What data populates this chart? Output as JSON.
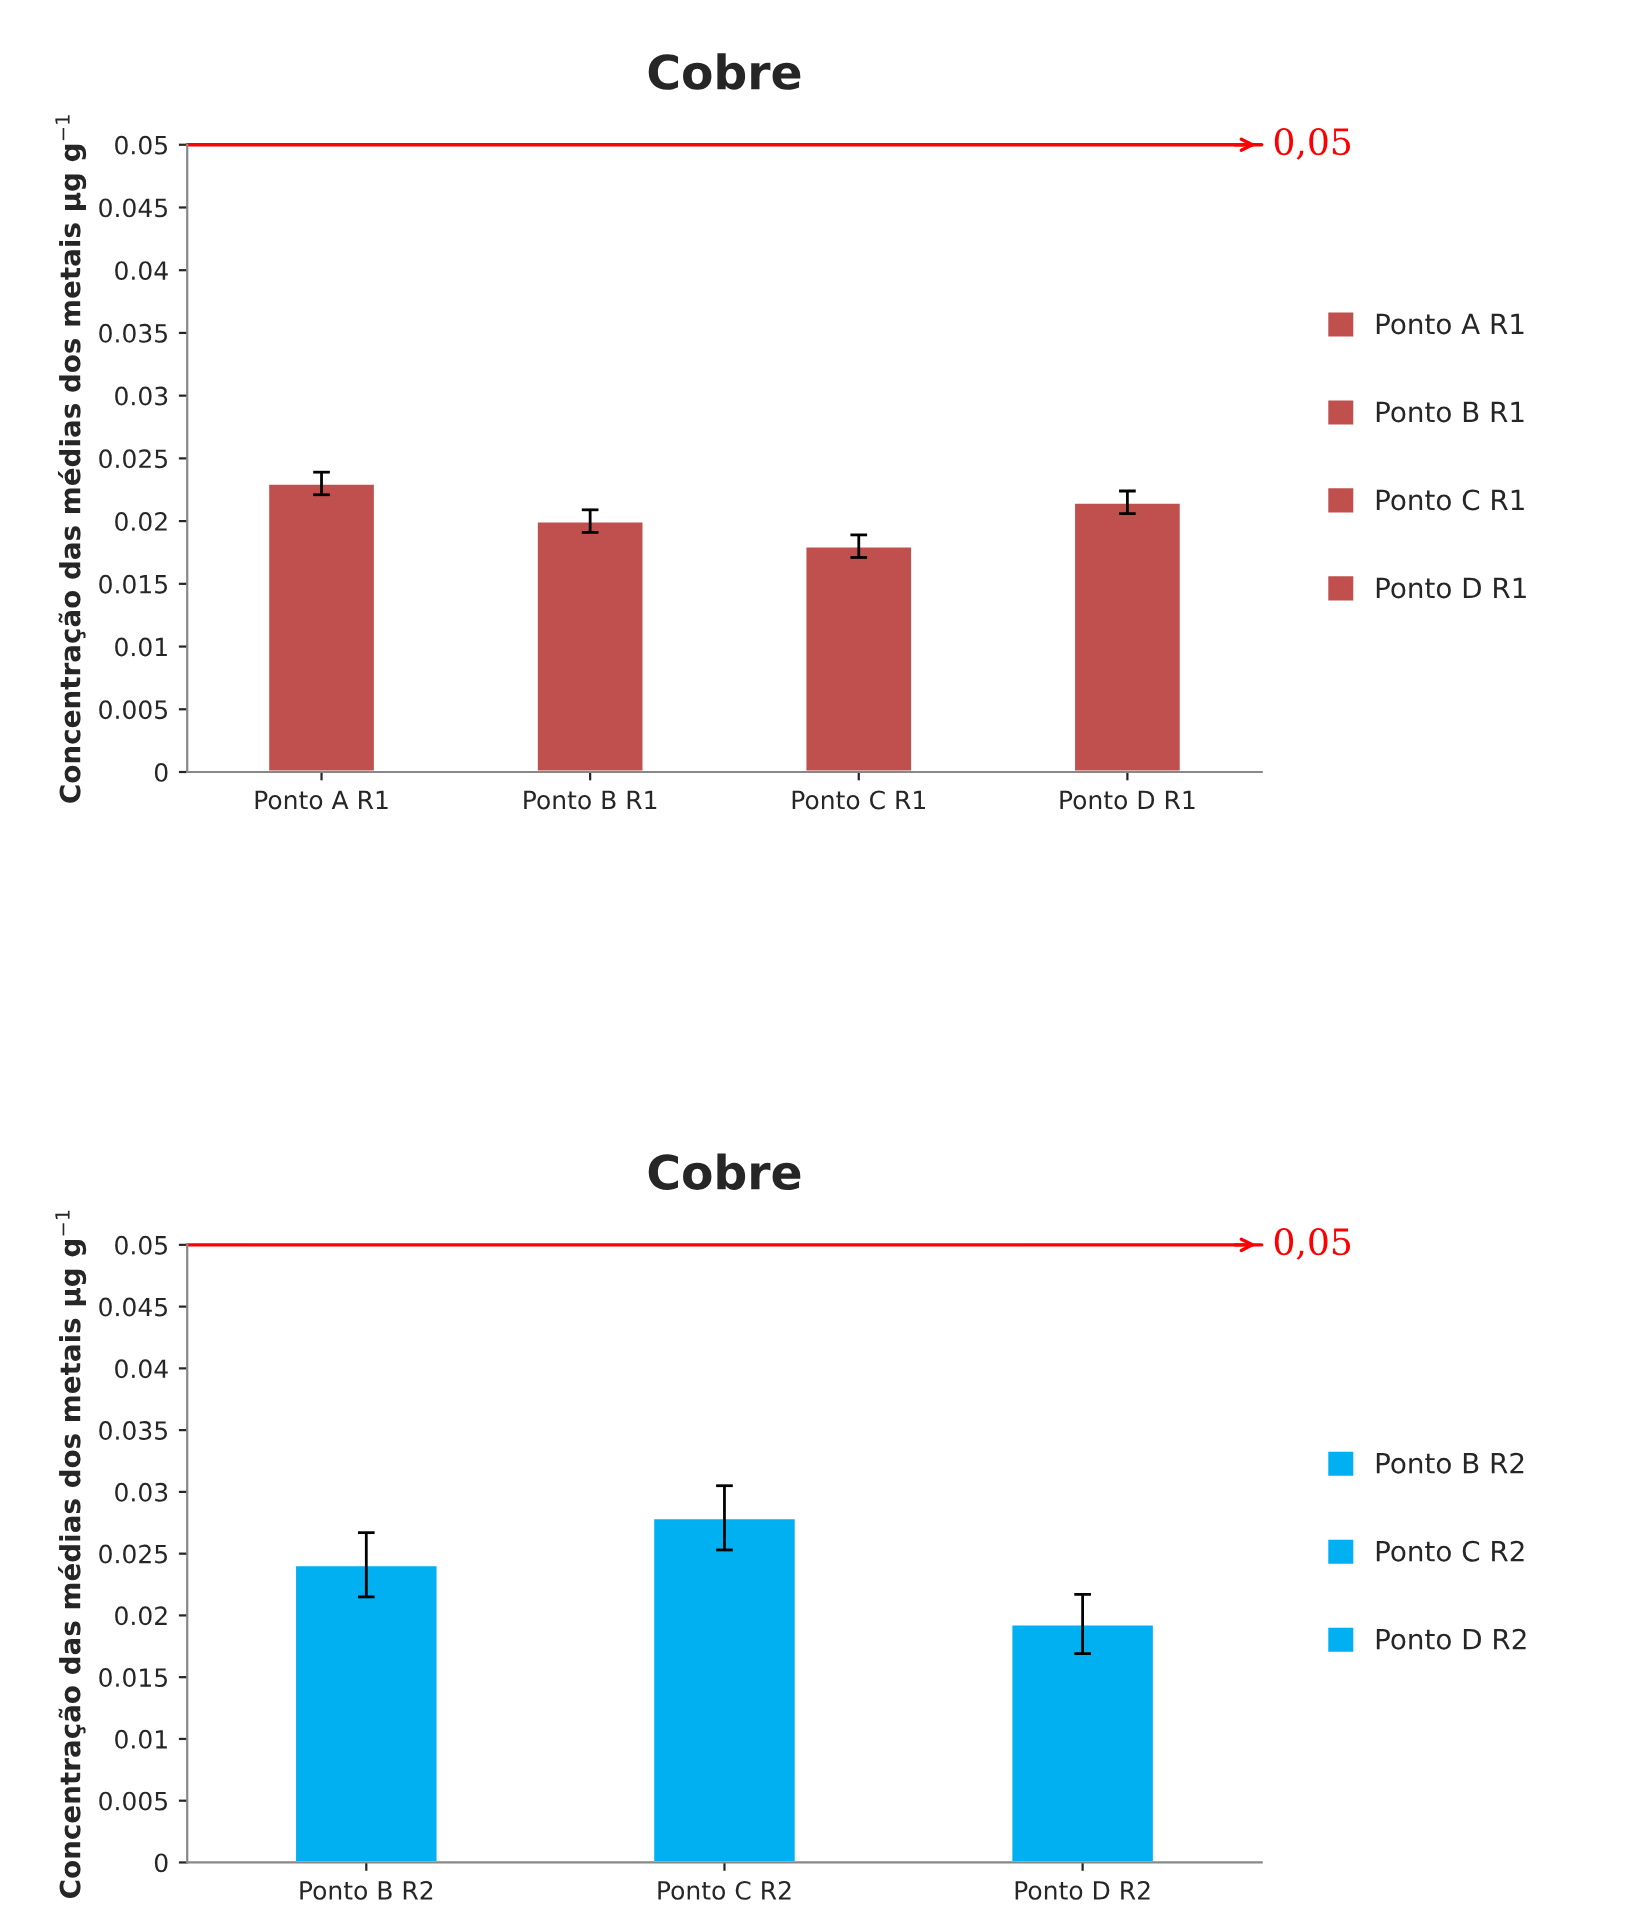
{
  "chart_data": [
    {
      "type": "bar",
      "title": "Cobre",
      "ylabel": "Concentração das médias dos metais µg g$^{−1}$",
      "categories": [
        "Ponto A R1",
        "Ponto B R1",
        "Ponto C R1",
        "Ponto D R1"
      ],
      "series": [
        {
          "name": "Ponto A R1",
          "color": "#c0504d",
          "values": [
            0.023,
            null,
            null,
            null
          ],
          "errors": [
            0.0009,
            null,
            null,
            null
          ]
        },
        {
          "name": "Ponto B R1",
          "color": "#c0504d",
          "values": [
            null,
            0.02,
            null,
            null
          ],
          "errors": [
            null,
            0.0009,
            null,
            null
          ]
        },
        {
          "name": "Ponto C R1",
          "color": "#c0504d",
          "values": [
            null,
            null,
            0.018,
            null
          ],
          "errors": [
            null,
            null,
            0.0009,
            null
          ]
        },
        {
          "name": "Ponto D R1",
          "color": "#c0504d",
          "values": [
            null,
            null,
            null,
            0.0215
          ],
          "errors": [
            null,
            null,
            null,
            0.0009
          ]
        }
      ],
      "ylim": [
        0,
        0.05
      ],
      "yticks": [
        0,
        0.005,
        0.01,
        0.015,
        0.02,
        0.025,
        0.03,
        0.035,
        0.04,
        0.045,
        0.05
      ],
      "ref_lines": [
        {
          "axis": "y",
          "value": 0.05,
          "label": "0,05",
          "color": "#ff0000"
        }
      ],
      "legend": "right",
      "grid": false
    },
    {
      "type": "bar",
      "title": "Cobre",
      "ylabel": "Concentração das médias dos metais µg g$^{−1}$",
      "categories": [
        "Ponto B R2",
        "Ponto C R2",
        "Ponto D R2"
      ],
      "series": [
        {
          "name": "Ponto B R2",
          "color": "#00b0f0",
          "values": [
            0.0241,
            null,
            null
          ],
          "errors": [
            0.0026,
            null,
            null
          ]
        },
        {
          "name": "Ponto C R2",
          "color": "#00b0f0",
          "values": [
            null,
            0.0279,
            null
          ],
          "errors": [
            null,
            0.0026,
            null
          ]
        },
        {
          "name": "Ponto D R2",
          "color": "#00b0f0",
          "values": [
            null,
            null,
            0.0193
          ],
          "errors": [
            null,
            null,
            0.0024
          ]
        }
      ],
      "ylim": [
        0,
        0.05
      ],
      "yticks": [
        0,
        0.005,
        0.01,
        0.015,
        0.02,
        0.025,
        0.03,
        0.035,
        0.04,
        0.045,
        0.05
      ],
      "ref_lines": [
        {
          "axis": "y",
          "value": 0.05,
          "label": "0,05",
          "color": "#ff0000"
        }
      ],
      "legend": "right",
      "grid": false
    }
  ]
}
